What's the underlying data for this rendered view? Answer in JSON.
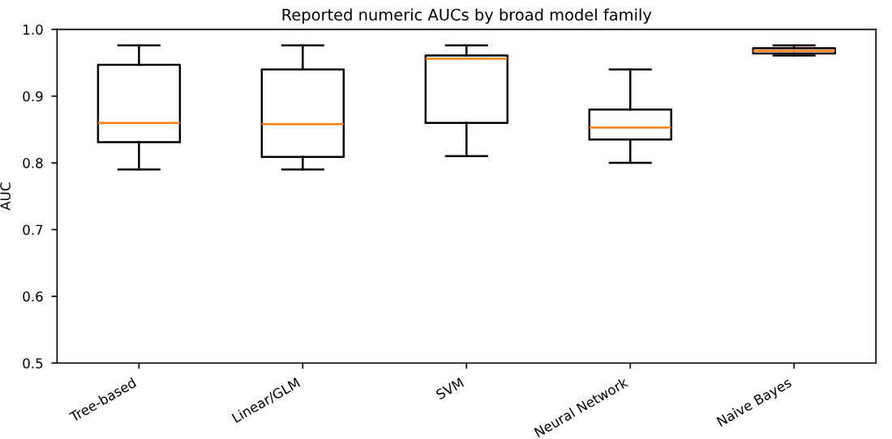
{
  "chart_data": {
    "type": "box",
    "title": "Reported numeric AUCs by broad model family",
    "ylabel": "AUC",
    "categories": [
      "Tree-based",
      "Linear/GLM",
      "SVM",
      "Neural Network",
      "Naive Bayes"
    ],
    "boxes": [
      {
        "low": 0.79,
        "q1": 0.831,
        "median": 0.86,
        "q3": 0.947,
        "high": 0.976
      },
      {
        "low": 0.79,
        "q1": 0.809,
        "median": 0.858,
        "q3": 0.94,
        "high": 0.976
      },
      {
        "low": 0.81,
        "q1": 0.86,
        "median": 0.956,
        "q3": 0.961,
        "high": 0.976
      },
      {
        "low": 0.8,
        "q1": 0.835,
        "median": 0.853,
        "q3": 0.88,
        "high": 0.94
      },
      {
        "low": 0.961,
        "q1": 0.964,
        "median": 0.968,
        "q3": 0.972,
        "high": 0.976
      }
    ],
    "ylim": [
      0.5,
      1.0
    ],
    "yticks": [
      0.5,
      0.6,
      0.7,
      0.8,
      0.9,
      {
        "value": 1,
        "label": "1.0"
      }
    ],
    "grid": false
  }
}
